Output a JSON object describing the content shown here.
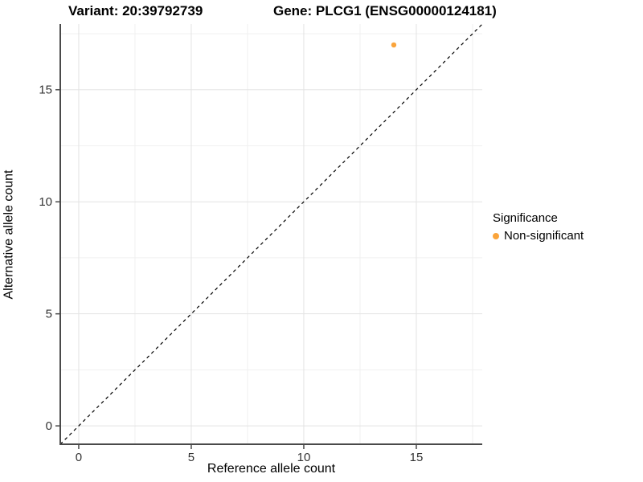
{
  "titles": {
    "variant": "Variant: 20:39792739",
    "gene": "Gene: PLCG1 (ENSG00000124181)"
  },
  "axes": {
    "x_label": "Reference allele count",
    "y_label": "Alternative allele count"
  },
  "legend": {
    "title": "Significance",
    "items": [
      {
        "label": "Non-significant",
        "color": "#FAA43B"
      }
    ]
  },
  "colors": {
    "point": "#FAA43B",
    "axis_line": "#4a4a4a",
    "major_grid": "#e3e3e3",
    "minor_grid": "#f0f0f0",
    "identity_line": "#000000",
    "tick_label": "#333333"
  },
  "chart_data": {
    "type": "scatter",
    "title": "Variant: 20:39792739   Gene: PLCG1 (ENSG00000124181)",
    "xlabel": "Reference allele count",
    "ylabel": "Alternative allele count",
    "xlim": [
      -0.82,
      17.93
    ],
    "ylim": [
      -0.82,
      17.93
    ],
    "x_ticks": [
      0,
      5,
      10,
      15
    ],
    "y_ticks": [
      0,
      5,
      10,
      15
    ],
    "x_minor_ticks": [
      2.5,
      7.5,
      12.5,
      17.5
    ],
    "y_minor_ticks": [
      2.5,
      7.5,
      12.5,
      17.5
    ],
    "grid": true,
    "legend_position": "right",
    "reference_line": {
      "kind": "identity",
      "slope": 1,
      "intercept": 0,
      "style": "dashed"
    },
    "series": [
      {
        "name": "Non-significant",
        "color": "#FAA43B",
        "points": [
          {
            "x": 14,
            "y": 17
          }
        ]
      }
    ]
  }
}
